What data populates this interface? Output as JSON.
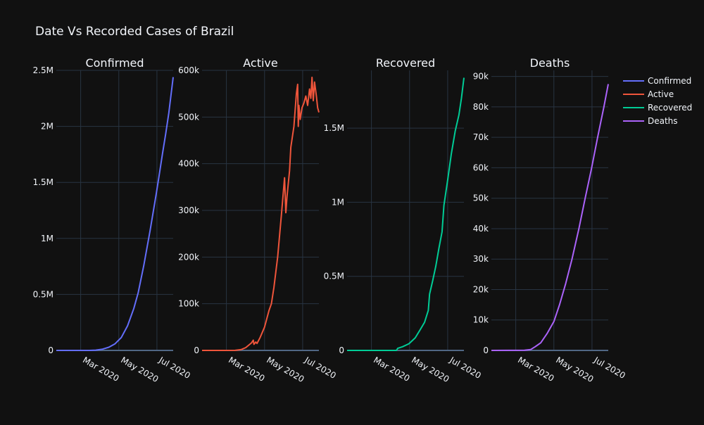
{
  "chart_data": {
    "type": "line",
    "title": "Date Vs Recorded Cases of Brazil",
    "x_ticks": [
      "Mar 2020",
      "May 2020",
      "Jul 2020"
    ],
    "x_range": [
      "2020-01-22",
      "2020-07-27"
    ],
    "legend_placement": "top-right",
    "grid": true,
    "panels": [
      {
        "subplot_title": "Confirmed",
        "series_name": "Confirmed",
        "color": "#636efa",
        "ylim": [
          0,
          2500000
        ],
        "y_ticks": [
          "0",
          "0.5M",
          "1M",
          "1.5M",
          "2M",
          "2.5M"
        ],
        "points": [
          [
            "2020-01-22",
            0
          ],
          [
            "2020-02-26",
            1
          ],
          [
            "2020-03-15",
            200
          ],
          [
            "2020-03-25",
            2400
          ],
          [
            "2020-04-05",
            11000
          ],
          [
            "2020-04-15",
            28000
          ],
          [
            "2020-04-25",
            59000
          ],
          [
            "2020-05-05",
            115000
          ],
          [
            "2020-05-15",
            220000
          ],
          [
            "2020-05-25",
            375000
          ],
          [
            "2020-06-01",
            515000
          ],
          [
            "2020-06-10",
            760000
          ],
          [
            "2020-06-20",
            1070000
          ],
          [
            "2020-06-30",
            1400000
          ],
          [
            "2020-07-05",
            1580000
          ],
          [
            "2020-07-10",
            1760000
          ],
          [
            "2020-07-15",
            1930000
          ],
          [
            "2020-07-20",
            2120000
          ],
          [
            "2020-07-24",
            2300000
          ],
          [
            "2020-07-27",
            2440000
          ]
        ]
      },
      {
        "subplot_title": "Active",
        "series_name": "Active",
        "color": "#ef553b",
        "ylim": [
          0,
          600000
        ],
        "y_ticks": [
          "0",
          "100k",
          "200k",
          "300k",
          "400k",
          "500k",
          "600k"
        ],
        "points": [
          [
            "2020-01-22",
            0
          ],
          [
            "2020-02-26",
            1
          ],
          [
            "2020-03-15",
            200
          ],
          [
            "2020-03-25",
            2000
          ],
          [
            "2020-04-01",
            6000
          ],
          [
            "2020-04-10",
            16000
          ],
          [
            "2020-04-13",
            22000
          ],
          [
            "2020-04-14",
            13000
          ],
          [
            "2020-04-17",
            18000
          ],
          [
            "2020-04-19",
            15000
          ],
          [
            "2020-04-24",
            28000
          ],
          [
            "2020-05-01",
            50000
          ],
          [
            "2020-05-08",
            85000
          ],
          [
            "2020-05-12",
            100000
          ],
          [
            "2020-05-16",
            135000
          ],
          [
            "2020-05-22",
            200000
          ],
          [
            "2020-05-28",
            290000
          ],
          [
            "2020-06-02",
            370000
          ],
          [
            "2020-06-04",
            295000
          ],
          [
            "2020-06-06",
            330000
          ],
          [
            "2020-06-10",
            385000
          ],
          [
            "2020-06-12",
            435000
          ],
          [
            "2020-06-17",
            480000
          ],
          [
            "2020-06-21",
            550000
          ],
          [
            "2020-06-23",
            570000
          ],
          [
            "2020-06-24",
            480000
          ],
          [
            "2020-06-25",
            525000
          ],
          [
            "2020-06-27",
            495000
          ],
          [
            "2020-06-30",
            520000
          ],
          [
            "2020-07-03",
            530000
          ],
          [
            "2020-07-06",
            545000
          ],
          [
            "2020-07-09",
            525000
          ],
          [
            "2020-07-12",
            560000
          ],
          [
            "2020-07-14",
            540000
          ],
          [
            "2020-07-16",
            585000
          ],
          [
            "2020-07-18",
            535000
          ],
          [
            "2020-07-20",
            575000
          ],
          [
            "2020-07-23",
            545000
          ],
          [
            "2020-07-25",
            520000
          ],
          [
            "2020-07-27",
            510000
          ]
        ]
      },
      {
        "subplot_title": "Recovered",
        "series_name": "Recovered",
        "color": "#00cc96",
        "ylim": [
          0,
          1890000
        ],
        "y_ticks": [
          "0",
          "0.5M",
          "1M",
          "1.5M"
        ],
        "points": [
          [
            "2020-01-22",
            0
          ],
          [
            "2020-04-10",
            100
          ],
          [
            "2020-04-12",
            14000
          ],
          [
            "2020-04-20",
            25000
          ],
          [
            "2020-04-30",
            45000
          ],
          [
            "2020-05-10",
            85000
          ],
          [
            "2020-05-18",
            140000
          ],
          [
            "2020-05-25",
            190000
          ],
          [
            "2020-05-31",
            270000
          ],
          [
            "2020-06-02",
            380000
          ],
          [
            "2020-06-07",
            470000
          ],
          [
            "2020-06-12",
            570000
          ],
          [
            "2020-06-17",
            690000
          ],
          [
            "2020-06-22",
            800000
          ],
          [
            "2020-06-25",
            980000
          ],
          [
            "2020-07-01",
            1150000
          ],
          [
            "2020-07-07",
            1330000
          ],
          [
            "2020-07-13",
            1480000
          ],
          [
            "2020-07-19",
            1590000
          ],
          [
            "2020-07-23",
            1700000
          ],
          [
            "2020-07-27",
            1840000
          ]
        ]
      },
      {
        "subplot_title": "Deaths",
        "series_name": "Deaths",
        "color": "#ab63fa",
        "ylim": [
          0,
          92000
        ],
        "y_ticks": [
          "0",
          "10k",
          "20k",
          "30k",
          "40k",
          "50k",
          "60k",
          "70k",
          "80k",
          "90k"
        ],
        "points": [
          [
            "2020-01-22",
            0
          ],
          [
            "2020-03-15",
            50
          ],
          [
            "2020-03-25",
            300
          ],
          [
            "2020-04-01",
            1200
          ],
          [
            "2020-04-10",
            2500
          ],
          [
            "2020-04-20",
            5500
          ],
          [
            "2020-05-01",
            9500
          ],
          [
            "2020-05-10",
            15000
          ],
          [
            "2020-05-20",
            22000
          ],
          [
            "2020-05-30",
            30000
          ],
          [
            "2020-06-10",
            40000
          ],
          [
            "2020-06-20",
            50000
          ],
          [
            "2020-06-30",
            59500
          ],
          [
            "2020-07-10",
            70000
          ],
          [
            "2020-07-20",
            80000
          ],
          [
            "2020-07-27",
            87500
          ]
        ]
      }
    ]
  }
}
